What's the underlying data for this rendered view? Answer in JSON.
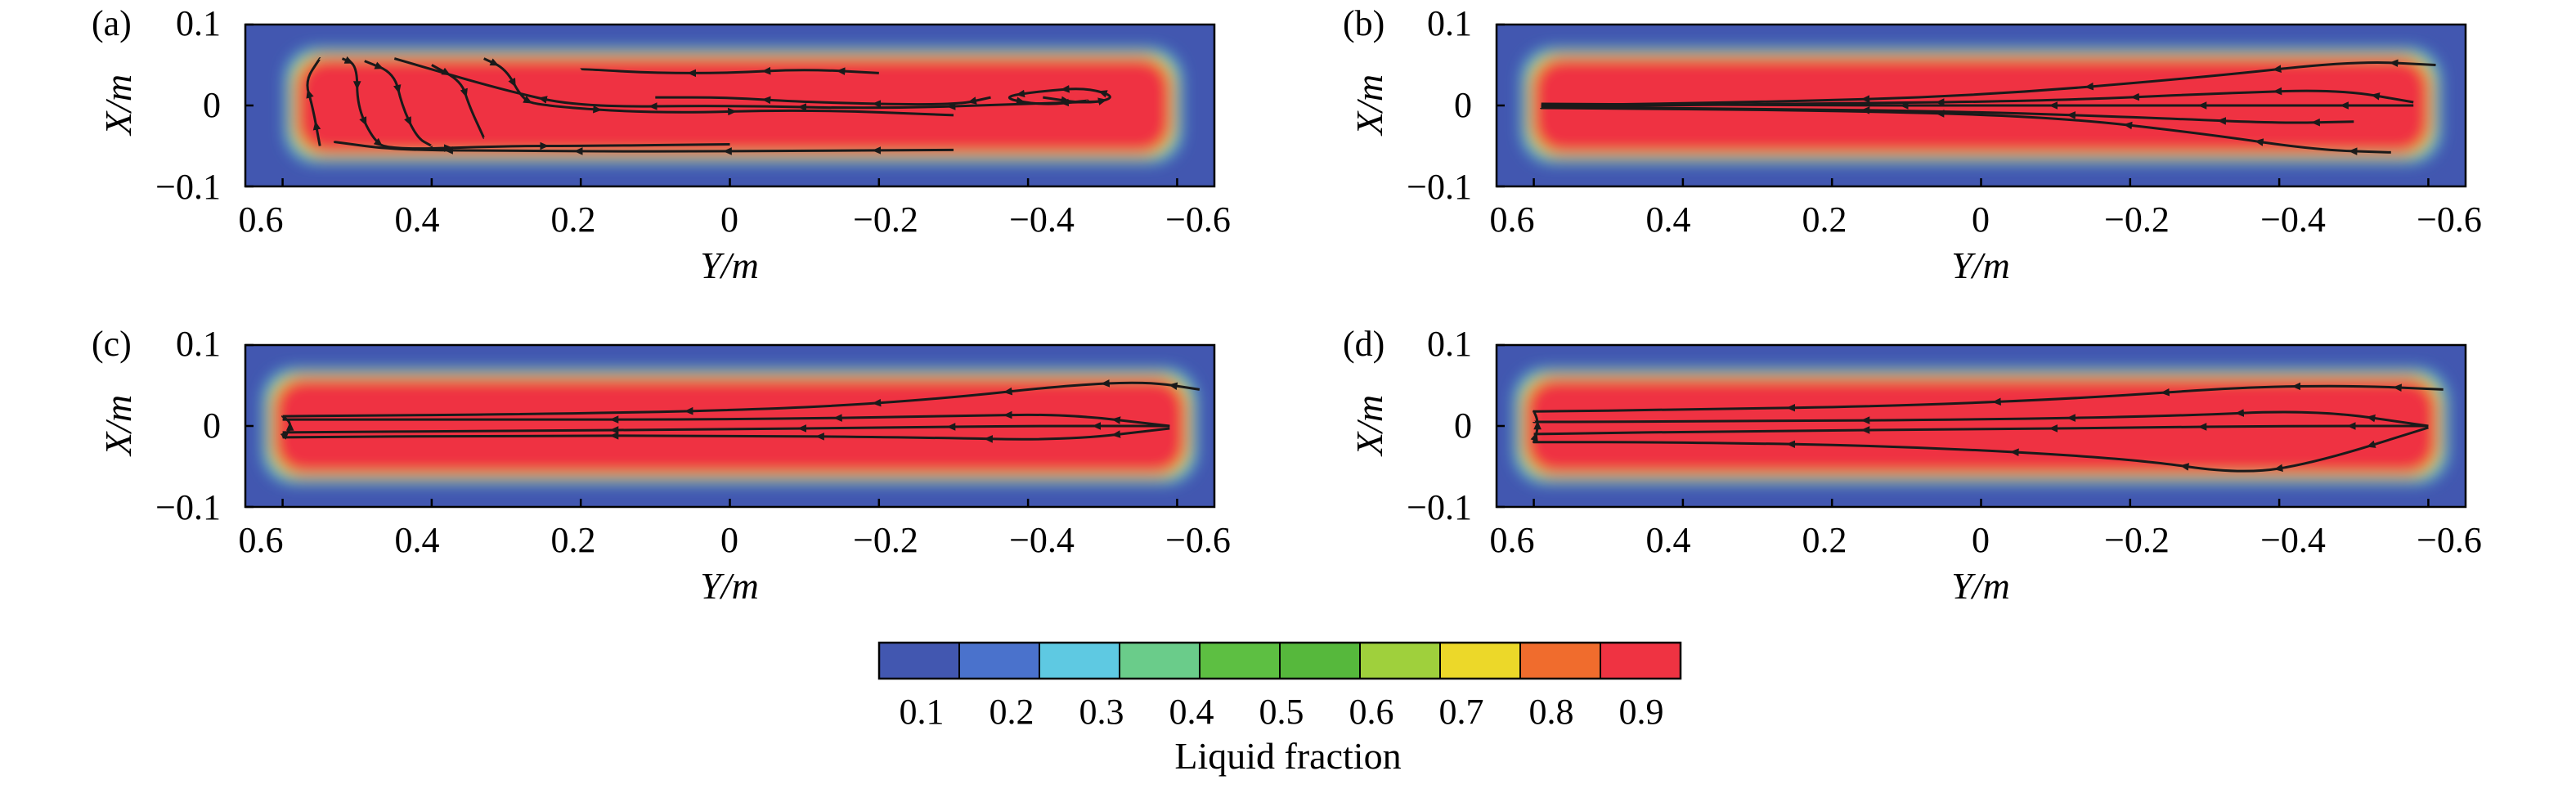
{
  "chart_data": [
    {
      "type": "heatmap",
      "panel_label": "(a)",
      "xlabel": "Y/m",
      "ylabel": "X/m",
      "x_axis_reversed": true,
      "xlim": [
        0.65,
        -0.65
      ],
      "ylim": [
        -0.1,
        0.1
      ],
      "x_ticks": [
        0.6,
        0.4,
        0.2,
        0,
        -0.2,
        -0.4,
        -0.6
      ],
      "x_tick_labels": [
        "0.6",
        "0.4",
        "0.2",
        "0",
        "−0.2",
        "−0.4",
        "−0.6"
      ],
      "y_ticks": [
        0.1,
        0,
        -0.1
      ],
      "y_tick_labels": [
        "0.1",
        "0",
        "−0.1"
      ],
      "colorbar": "Liquid fraction",
      "streamline_pattern": "recirculating",
      "melt_pool_extent": {
        "y_range": [
          0.58,
          -0.59
        ],
        "x_range": [
          -0.058,
          0.058
        ]
      },
      "streamlines": [
        {
          "y": [
            -0.3,
            -0.1,
            0.1,
            0.3,
            0.45,
            0.53
          ],
          "x": [
            -0.055,
            -0.056,
            -0.057,
            -0.056,
            -0.055,
            -0.045
          ]
        },
        {
          "y": [
            0.55,
            0.56,
            0.57,
            0.55
          ],
          "x": [
            -0.05,
            0.0,
            0.03,
            0.058
          ]
        },
        {
          "y": [
            0.52,
            0.5,
            0.5,
            0.48,
            0.46,
            0.3,
            0.2,
            0.0
          ],
          "x": [
            0.058,
            0.05,
            0.0,
            -0.04,
            -0.055,
            -0.05,
            -0.05,
            -0.048
          ]
        },
        {
          "y": [
            0.49,
            0.45,
            0.44,
            0.42,
            0.4
          ],
          "x": [
            0.055,
            0.04,
            0.0,
            -0.04,
            -0.05
          ]
        },
        {
          "y": [
            0.4,
            0.36,
            0.35,
            0.33
          ],
          "x": [
            0.05,
            0.03,
            0.0,
            -0.04
          ]
        },
        {
          "y": [
            0.33,
            0.3,
            0.28,
            0.26,
            0.1,
            -0.1,
            -0.3
          ],
          "x": [
            0.058,
            0.045,
            0.01,
            0.0,
            -0.01,
            -0.005,
            -0.012
          ]
        },
        {
          "y": [
            -0.5,
            -0.4,
            -0.2,
            0.0,
            0.2,
            0.3,
            0.45
          ],
          "x": [
            0.005,
            0.002,
            -0.004,
            0.0,
            -0.002,
            0.018,
            0.058
          ]
        },
        {
          "y": [
            -0.35,
            -0.3,
            -0.1,
            0.0,
            0.1
          ],
          "x": [
            0.01,
            0.0,
            0.004,
            0.01,
            0.01
          ]
        },
        {
          "y": [
            -0.2,
            -0.1,
            0.0,
            0.1,
            0.2
          ],
          "x": [
            0.04,
            0.045,
            0.04,
            0.04,
            0.045
          ]
        },
        {
          "y": [
            -0.42,
            -0.48,
            -0.52,
            -0.48,
            -0.42,
            -0.36,
            -0.42,
            -0.48
          ],
          "x": [
            0.01,
            0.002,
            0.01,
            0.022,
            0.018,
            0.01,
            0.0,
            0.006
          ]
        }
      ]
    },
    {
      "type": "heatmap",
      "panel_label": "(b)",
      "xlabel": "Y/m",
      "ylabel": "X/m",
      "x_axis_reversed": true,
      "xlim": [
        0.65,
        -0.65
      ],
      "ylim": [
        -0.1,
        0.1
      ],
      "x_ticks": [
        0.6,
        0.4,
        0.2,
        0,
        -0.2,
        -0.4,
        -0.6
      ],
      "x_tick_labels": [
        "0.6",
        "0.4",
        "0.2",
        "0",
        "−0.2",
        "−0.4",
        "−0.6"
      ],
      "y_ticks": [
        0.1,
        0,
        -0.1
      ],
      "y_tick_labels": [
        "0.1",
        "0",
        "−0.1"
      ],
      "colorbar": "Liquid fraction",
      "streamline_pattern": "converging",
      "melt_pool_extent": {
        "y_range": [
          0.6,
          -0.6
        ],
        "x_range": [
          -0.058,
          0.058
        ]
      },
      "streamlines": [
        {
          "y": [
            -0.61,
            -0.5,
            -0.3,
            0.0,
            0.3,
            0.59
          ],
          "x": [
            0.05,
            0.055,
            0.035,
            0.012,
            0.004,
            0.0
          ]
        },
        {
          "y": [
            -0.58,
            -0.48,
            -0.32,
            -0.1,
            0.2,
            0.59
          ],
          "x": [
            0.004,
            0.02,
            0.015,
            0.006,
            0.002,
            -0.001
          ]
        },
        {
          "y": [
            -0.58,
            -0.4,
            -0.2,
            0.0,
            0.2,
            0.59
          ],
          "x": [
            0.0,
            0.0,
            0.0,
            0.0,
            0.0,
            0.002
          ]
        },
        {
          "y": [
            -0.55,
            -0.45,
            -0.3,
            -0.1,
            0.2,
            0.59
          ],
          "x": [
            -0.058,
            -0.055,
            -0.035,
            -0.014,
            -0.006,
            -0.003
          ]
        },
        {
          "y": [
            -0.5,
            -0.4,
            -0.25,
            0.0,
            0.3,
            0.59
          ],
          "x": [
            -0.02,
            -0.022,
            -0.016,
            -0.008,
            -0.004,
            -0.002
          ]
        }
      ]
    },
    {
      "type": "heatmap",
      "panel_label": "(c)",
      "xlabel": "Y/m",
      "ylabel": "X/m",
      "x_axis_reversed": true,
      "xlim": [
        0.65,
        -0.65
      ],
      "ylim": [
        -0.1,
        0.1
      ],
      "x_ticks": [
        0.6,
        0.4,
        0.2,
        0,
        -0.2,
        -0.4,
        -0.6
      ],
      "x_tick_labels": [
        "0.6",
        "0.4",
        "0.2",
        "0",
        "−0.2",
        "−0.4",
        "−0.6"
      ],
      "y_ticks": [
        0.1,
        0,
        -0.1
      ],
      "y_tick_labels": [
        "0.1",
        "0",
        "−0.1"
      ],
      "colorbar": "Liquid fraction",
      "streamline_pattern": "converging",
      "melt_pool_extent": {
        "y_range": [
          0.61,
          -0.61
        ],
        "x_range": [
          -0.058,
          0.058
        ]
      },
      "streamlines": [
        {
          "y": [
            -0.63,
            -0.56,
            -0.45,
            -0.3,
            -0.1,
            0.2,
            0.6
          ],
          "x": [
            0.045,
            0.055,
            0.05,
            0.035,
            0.022,
            0.015,
            0.012
          ]
        },
        {
          "y": [
            -0.59,
            -0.45,
            -0.3,
            0.0,
            0.3,
            0.6
          ],
          "x": [
            0.0,
            0.015,
            0.012,
            0.008,
            0.008,
            0.008
          ]
        },
        {
          "y": [
            -0.59,
            -0.4,
            -0.2,
            0.0,
            0.3,
            0.6
          ],
          "x": [
            0.0,
            0.0,
            -0.002,
            -0.004,
            -0.006,
            -0.008
          ]
        },
        {
          "y": [
            -0.59,
            -0.45,
            -0.25,
            0.0,
            0.3,
            0.6
          ],
          "x": [
            -0.003,
            -0.018,
            -0.014,
            -0.012,
            -0.012,
            -0.014
          ]
        },
        {
          "y": [
            0.6,
            0.59,
            0.59,
            0.6
          ],
          "x": [
            -0.014,
            -0.005,
            0.005,
            0.012
          ]
        }
      ]
    },
    {
      "type": "heatmap",
      "panel_label": "(d)",
      "xlabel": "Y/m",
      "ylabel": "X/m",
      "x_axis_reversed": true,
      "xlim": [
        0.65,
        -0.65
      ],
      "ylim": [
        -0.1,
        0.1
      ],
      "x_ticks": [
        0.6,
        0.4,
        0.2,
        0,
        -0.2,
        -0.4,
        -0.6
      ],
      "x_tick_labels": [
        "0.6",
        "0.4",
        "0.2",
        "0",
        "−0.2",
        "−0.4",
        "−0.6"
      ],
      "y_ticks": [
        0.1,
        0,
        -0.1
      ],
      "y_tick_labels": [
        "0.1",
        "0",
        "−0.1"
      ],
      "colorbar": "Liquid fraction",
      "streamline_pattern": "converging",
      "melt_pool_extent": {
        "y_range": [
          0.61,
          -0.61
        ],
        "x_range": [
          -0.058,
          0.058
        ]
      },
      "streamlines": [
        {
          "y": [
            -0.62,
            -0.5,
            -0.35,
            -0.15,
            0.1,
            0.4,
            0.6
          ],
          "x": [
            0.045,
            0.05,
            0.048,
            0.035,
            0.025,
            0.02,
            0.018
          ]
        },
        {
          "y": [
            -0.6,
            -0.45,
            -0.25,
            0.0,
            0.3,
            0.6
          ],
          "x": [
            0.0,
            0.02,
            0.012,
            0.008,
            0.006,
            0.005
          ]
        },
        {
          "y": [
            -0.6,
            -0.4,
            -0.2,
            0.0,
            0.3,
            0.6
          ],
          "x": [
            0.0,
            0.0,
            -0.002,
            -0.004,
            -0.006,
            -0.01
          ]
        },
        {
          "y": [
            -0.6,
            -0.45,
            -0.35,
            -0.2,
            0.1,
            0.4,
            0.6
          ],
          "x": [
            -0.002,
            -0.045,
            -0.06,
            -0.04,
            -0.025,
            -0.02,
            -0.02
          ]
        },
        {
          "y": [
            0.6,
            0.595,
            0.595,
            0.6
          ],
          "x": [
            -0.02,
            -0.005,
            0.008,
            0.018
          ]
        }
      ]
    }
  ],
  "colorbar": {
    "label": "Liquid fraction",
    "tick_labels": [
      "0.1",
      "0.2",
      "0.3",
      "0.4",
      "0.5",
      "0.6",
      "0.7",
      "0.8",
      "0.9"
    ],
    "levels": [
      {
        "max": 0.1,
        "color": "#4257b0"
      },
      {
        "max": 0.2,
        "color": "#4a72cc"
      },
      {
        "max": 0.3,
        "color": "#5ec9e2"
      },
      {
        "max": 0.4,
        "color": "#6acc8a"
      },
      {
        "max": 0.5,
        "color": "#5dbf42"
      },
      {
        "max": 0.6,
        "color": "#56b83c"
      },
      {
        "max": 0.7,
        "color": "#9fd03c"
      },
      {
        "max": 0.8,
        "color": "#ecd829"
      },
      {
        "max": 0.9,
        "color": "#f06c2d"
      },
      {
        "max": 1.0,
        "color": "#ef3342"
      }
    ]
  },
  "colors": {
    "background_field": "#4257b0",
    "melt_core": "#ef3342",
    "streamline": "#1a1a1a"
  }
}
